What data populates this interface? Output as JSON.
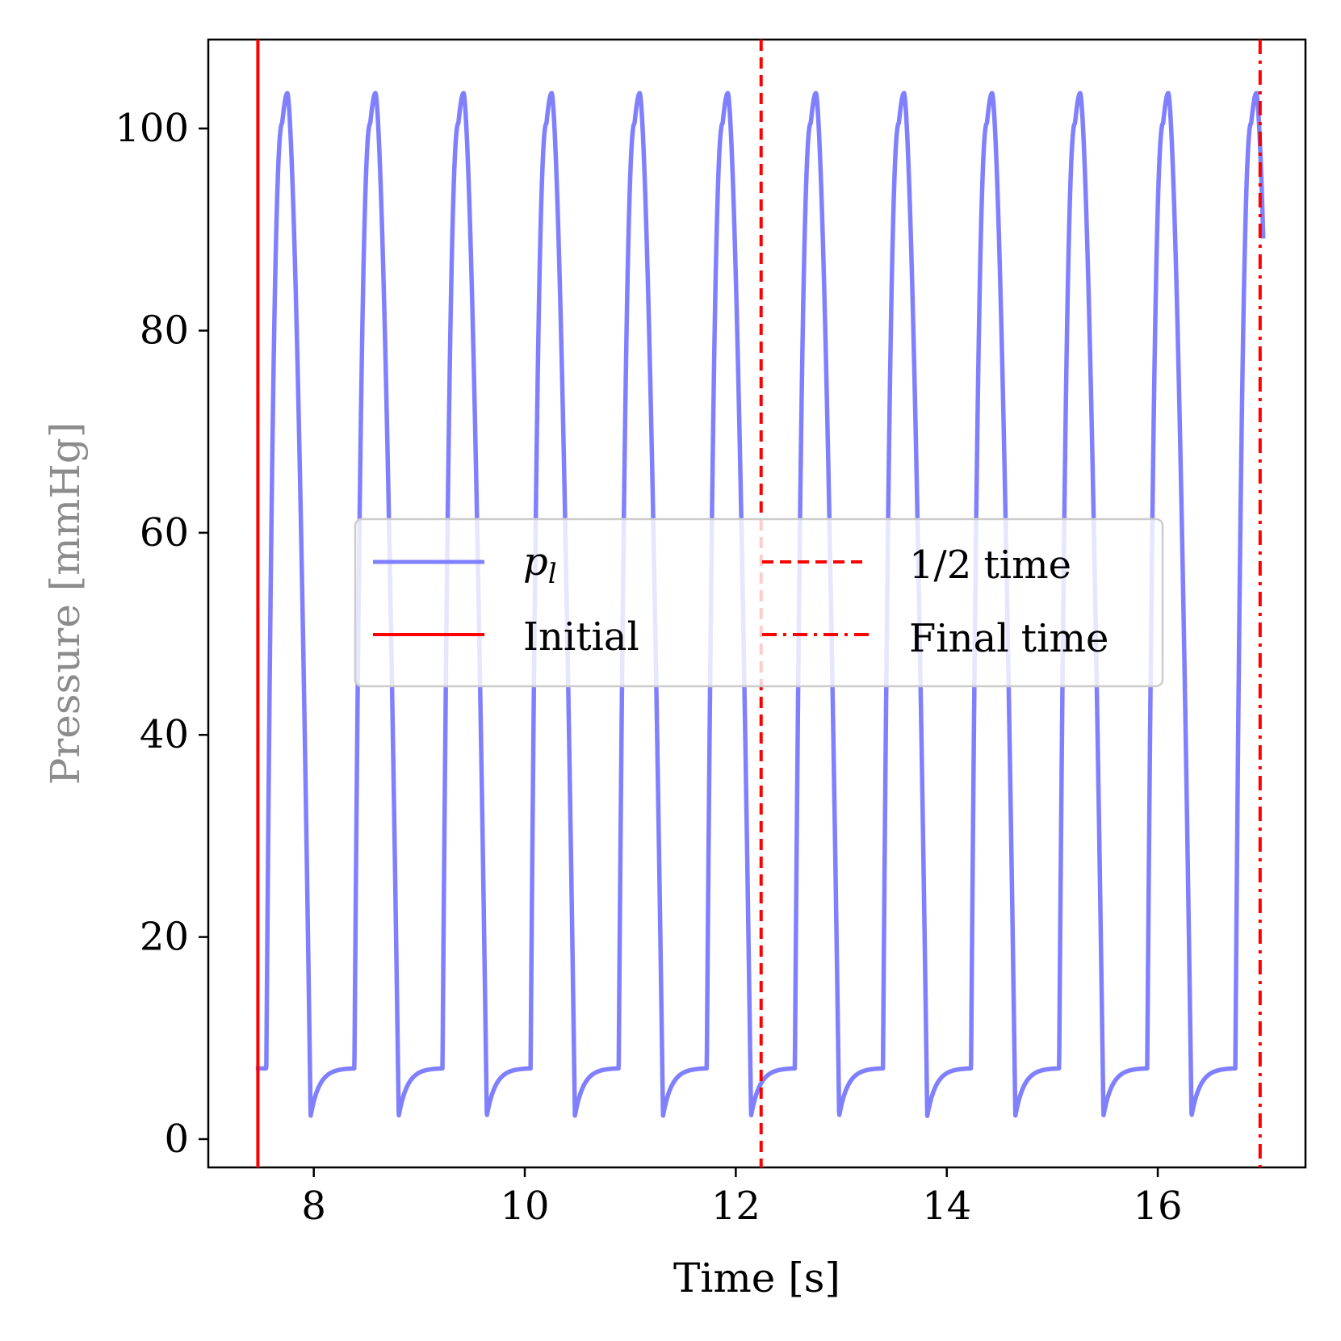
{
  "chart_data": {
    "type": "line",
    "xlabel": "Time [s]",
    "ylabel": "Pressure [mmHg]",
    "xlim": [
      7.0,
      17.4
    ],
    "ylim": [
      -2.8,
      108.8
    ],
    "xticks": [
      8,
      10,
      12,
      14,
      16
    ],
    "yticks": [
      0,
      20,
      40,
      60,
      80,
      100
    ],
    "series": [
      {
        "name": "p_l",
        "label": "p",
        "label_sub": "l",
        "color": "#8080ff",
        "start": 7.45,
        "end": 17.0,
        "period": 0.835,
        "first_rise": 7.55,
        "peak": 103.5,
        "trough": 2.3,
        "diastolic_plateau": 7.0
      }
    ],
    "vlines": [
      {
        "name": "Initial",
        "x": 7.47,
        "color": "#ff0000",
        "style": "solid"
      },
      {
        "name": "1/2 time",
        "x": 12.24,
        "color": "#ff0000",
        "style": "dashed"
      },
      {
        "name": "Final time",
        "x": 16.97,
        "color": "#ff0000",
        "style": "dashdot"
      }
    ],
    "legend": {
      "placement": "center",
      "columns": 2,
      "entries": [
        "p_l",
        "Initial",
        "1/2 time",
        "Final time"
      ]
    }
  }
}
